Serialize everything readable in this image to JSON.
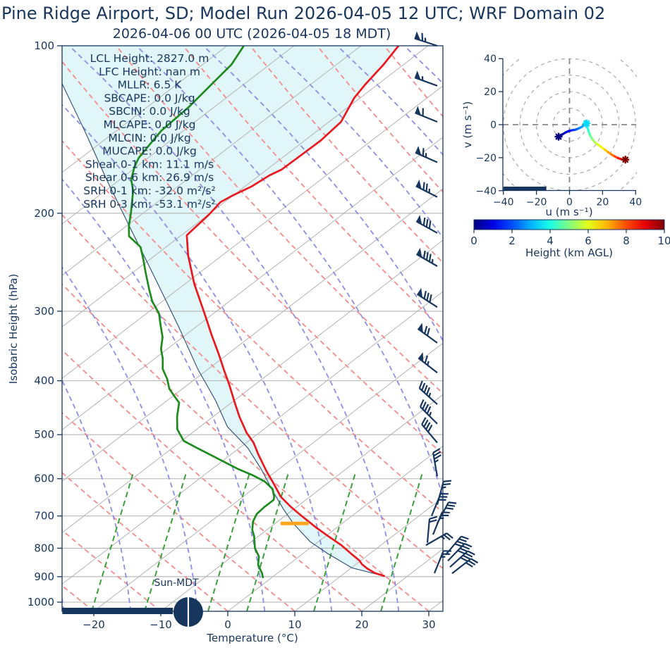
{
  "title": "Pine Ridge Airport, SD; Model Run 2026-04-05 12 UTC; WRF Domain 02",
  "subtitle": "2026-04-06 00 UTC  (2026-04-05 18 MDT)",
  "stats": {
    "lines": [
      "LCL Height: 2827.0 m",
      "LFC Height: nan m",
      "MLLR: 6.5 K",
      "SBCAPE: 0.0 J/kg",
      "SBCIN: 0.0 J/kg",
      "MLCAPE: 0.0 J/kg",
      "MLCIN: 0.0 J/kg",
      "MUCAPE: 0.0 J/kg",
      "Shear 0-1 km: 11.1 m/s",
      "Shear 0-6 km: 26.9 m/s",
      "SRH 0-1 km: -32.0 m²/s²",
      "SRH 0-3 km: -53.1 m²/s²"
    ]
  },
  "skewt": {
    "xlabel": "Temperature (°C)",
    "ylabel": "Isobaric Height (hPa)",
    "x_ticks": [
      -20,
      -10,
      0,
      10,
      20,
      30
    ],
    "p_ticks": [
      100,
      200,
      300,
      400,
      500,
      600,
      700,
      800,
      900,
      1000
    ],
    "sun_label": "Sun-MDT"
  },
  "hodograph": {
    "xlabel": "u (m s⁻¹)",
    "ylabel": "v (m s⁻¹)",
    "u_ticks": [
      -40,
      -20,
      0,
      20,
      40
    ],
    "v_ticks": [
      -40,
      -20,
      0,
      20,
      40
    ],
    "ring_radii": [
      10,
      20,
      30,
      40,
      50,
      60,
      70
    ]
  },
  "colorbar": {
    "label": "Height (km AGL)",
    "ticks": [
      0,
      2,
      4,
      6,
      8,
      10
    ],
    "min": 0,
    "max": 10
  },
  "colors": {
    "navy": "#17365e",
    "temperature": "#e8191f",
    "dewpoint": "#1e8b1e",
    "parcel": "#2c4a6e",
    "cape_shade": "#e1f6f9",
    "isotherm": "#b3b3b3",
    "dry_adiabat": "#f48a8a",
    "moist_adiabat": "#8e8ee8",
    "mixing_ratio": "#3aa03a",
    "lcl_marker": "#ffa51e",
    "grid": "#b3b3b3",
    "hodo_ring": "#aaaaaa"
  },
  "chart_data": {
    "type": "skewt_sounding",
    "pressure_range_hpa": [
      100,
      1037
    ],
    "temp_axis_range_c": [
      -24.7,
      32.1
    ],
    "temperature_profile": [
      [
        100,
        -84.4
      ],
      [
        108,
        -83.0
      ],
      [
        117,
        -81.9
      ],
      [
        124,
        -80.9
      ],
      [
        137,
        -78.2
      ],
      [
        148,
        -77.6
      ],
      [
        157,
        -77.7
      ],
      [
        167,
        -77.8
      ],
      [
        171,
        -78.5
      ],
      [
        179,
        -79.0
      ],
      [
        186,
        -80.1
      ],
      [
        191,
        -80.6
      ],
      [
        201,
        -79.9
      ],
      [
        219,
        -79.2
      ],
      [
        238,
        -75.1
      ],
      [
        268,
        -68.6
      ],
      [
        302,
        -61.5
      ],
      [
        331,
        -56.1
      ],
      [
        359,
        -51.2
      ],
      [
        383,
        -47.4
      ],
      [
        406,
        -43.9
      ],
      [
        438,
        -39.5
      ],
      [
        464,
        -36.1
      ],
      [
        496,
        -31.9
      ],
      [
        517,
        -28.9
      ],
      [
        542,
        -26.0
      ],
      [
        582,
        -21.4
      ],
      [
        611,
        -18.1
      ],
      [
        647,
        -14.3
      ],
      [
        674,
        -10.9
      ],
      [
        700,
        -7.5
      ],
      [
        735,
        -3.0
      ],
      [
        762,
        0.5
      ],
      [
        790,
        4.1
      ],
      [
        820,
        7.4
      ],
      [
        842,
        9.8
      ],
      [
        855,
        10.9
      ],
      [
        871,
        12.6
      ],
      [
        887,
        14.6
      ],
      [
        898,
        16.6
      ]
    ],
    "dewpoint_profile": [
      [
        100,
        -107.5
      ],
      [
        108,
        -105.7
      ],
      [
        129,
        -103.8
      ],
      [
        142,
        -103.3
      ],
      [
        151,
        -102.3
      ],
      [
        159,
        -101.4
      ],
      [
        165,
        -100.3
      ],
      [
        174,
        -98.3
      ],
      [
        182,
        -95.9
      ],
      [
        191,
        -93.8
      ],
      [
        200,
        -91.8
      ],
      [
        211,
        -89.6
      ],
      [
        220,
        -87.6
      ],
      [
        230,
        -83.8
      ],
      [
        242,
        -81.0
      ],
      [
        256,
        -78.0
      ],
      [
        274,
        -74.3
      ],
      [
        288,
        -71.5
      ],
      [
        303,
        -68.1
      ],
      [
        318,
        -65.6
      ],
      [
        334,
        -63.0
      ],
      [
        351,
        -60.9
      ],
      [
        365,
        -58.8
      ],
      [
        381,
        -56.8
      ],
      [
        397,
        -54.2
      ],
      [
        414,
        -51.9
      ],
      [
        428,
        -49.5
      ],
      [
        438,
        -47.8
      ],
      [
        464,
        -45.4
      ],
      [
        489,
        -42.9
      ],
      [
        513,
        -39.7
      ],
      [
        528,
        -36.4
      ],
      [
        544,
        -32.9
      ],
      [
        560,
        -29.5
      ],
      [
        577,
        -26.0
      ],
      [
        591,
        -22.8
      ],
      [
        607,
        -19.7
      ],
      [
        626,
        -17.1
      ],
      [
        647,
        -15.3
      ],
      [
        655,
        -14.8
      ],
      [
        675,
        -14.8
      ],
      [
        694,
        -14.6
      ],
      [
        716,
        -13.7
      ],
      [
        741,
        -12.2
      ],
      [
        762,
        -10.6
      ],
      [
        800,
        -8.2
      ],
      [
        828,
        -6.0
      ],
      [
        857,
        -4.5
      ],
      [
        887,
        -2.3
      ],
      [
        905,
        -1.2
      ]
    ],
    "parcel_profile": [
      [
        116,
        -127.8
      ],
      [
        142,
        -114.8
      ],
      [
        175,
        -101.6
      ],
      [
        215,
        -88.3
      ],
      [
        264,
        -75.0
      ],
      [
        320,
        -62.6
      ],
      [
        382,
        -51.4
      ],
      [
        434,
        -42.8
      ],
      [
        484,
        -35.9
      ],
      [
        528,
        -28.8
      ],
      [
        577,
        -22.6
      ],
      [
        632,
        -16.6
      ],
      [
        680,
        -11.6
      ],
      [
        722,
        -7.3
      ],
      [
        778,
        -1.3
      ],
      [
        818,
        3.7
      ],
      [
        868,
        10.1
      ],
      [
        898,
        16.6
      ]
    ],
    "lcl_marker": {
      "pressure_hpa": 722,
      "t_from": -9.2,
      "t_to": -5.0
    },
    "night_bar": {
      "t_from": -24.7,
      "t_to": -8.2
    },
    "sun_marker_t": -5.9,
    "wind_barbs": [
      [
        100,
        18,
        1,
        1,
        1,
        0
      ],
      [
        118,
        20,
        1,
        0,
        1,
        0
      ],
      [
        137,
        22,
        1,
        1,
        0,
        0
      ],
      [
        162,
        24,
        1,
        1,
        1,
        0
      ],
      [
        187,
        27,
        1,
        2,
        1,
        0
      ],
      [
        217,
        29,
        1,
        3,
        0,
        0
      ],
      [
        249,
        30,
        1,
        3,
        1,
        0
      ],
      [
        295,
        33,
        1,
        3,
        0,
        0
      ],
      [
        342,
        36,
        1,
        2,
        0,
        0
      ],
      [
        387,
        38,
        1,
        1,
        1,
        0
      ],
      [
        441,
        42,
        0,
        4,
        1,
        0
      ],
      [
        478,
        45,
        0,
        4,
        1,
        0
      ],
      [
        517,
        50,
        0,
        4,
        0,
        0
      ],
      [
        594,
        80,
        0,
        3,
        1,
        0
      ],
      [
        668,
        105,
        0,
        2,
        1,
        0
      ],
      [
        700,
        112,
        0,
        3,
        0,
        -8
      ],
      [
        722,
        118,
        0,
        3,
        0,
        0
      ],
      [
        756,
        112,
        0,
        2,
        1,
        -6
      ],
      [
        782,
        95,
        0,
        2,
        0,
        -14
      ],
      [
        790,
        150,
        0,
        2,
        1,
        -16
      ],
      [
        822,
        130,
        0,
        4,
        0,
        12
      ],
      [
        843,
        134,
        0,
        4,
        0,
        15
      ],
      [
        865,
        138,
        0,
        4,
        0,
        18
      ],
      [
        888,
        142,
        0,
        3,
        0,
        21
      ],
      [
        887,
        112,
        0,
        2,
        1,
        -4
      ]
    ],
    "hodograph_trace": [
      [
        -6.6,
        -7.3,
        0.0
      ],
      [
        -4.5,
        -6.0,
        0.3
      ],
      [
        -2.5,
        -4.8,
        0.7
      ],
      [
        -0.5,
        -3.9,
        1.1
      ],
      [
        1.5,
        -3.4,
        1.5
      ],
      [
        3.5,
        -3.1,
        1.9
      ],
      [
        5.5,
        -2.3,
        2.3
      ],
      [
        7.5,
        -1.3,
        2.7
      ],
      [
        9.3,
        -0.2,
        3.1
      ],
      [
        10.3,
        0.8,
        3.4
      ],
      [
        10.8,
        -1.5,
        3.8
      ],
      [
        11.5,
        -4.0,
        4.2
      ],
      [
        12.5,
        -6.5,
        4.6
      ],
      [
        13.8,
        -8.8,
        5.0
      ],
      [
        15.5,
        -10.8,
        5.4
      ],
      [
        17.3,
        -12.2,
        5.8
      ],
      [
        19.3,
        -13.6,
        6.2
      ],
      [
        21.3,
        -15.1,
        6.6
      ],
      [
        23.3,
        -16.6,
        7.0
      ],
      [
        25.3,
        -18.0,
        7.4
      ],
      [
        27.3,
        -19.2,
        7.8
      ],
      [
        29.3,
        -20.2,
        8.3
      ],
      [
        31.3,
        -20.9,
        8.8
      ],
      [
        33.0,
        -21.4,
        9.4
      ],
      [
        33.8,
        -21.2,
        10.0
      ]
    ],
    "hodograph_markers": [
      {
        "u": -6.6,
        "v": -7.3,
        "km": 0.0
      },
      {
        "u": 10.3,
        "v": 0.8,
        "km": 3.4
      },
      {
        "u": 33.8,
        "v": -21.2,
        "km": 10.0
      }
    ],
    "hodograph_night_bar": {
      "u_from": -40,
      "u_to": -14
    }
  }
}
